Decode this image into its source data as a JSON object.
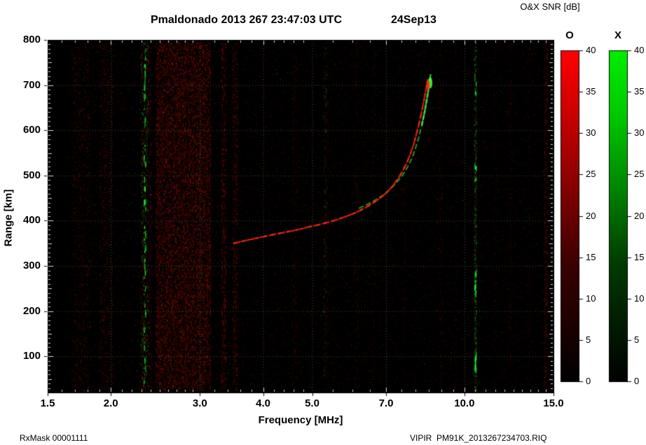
{
  "header": {
    "title": "Pmaldonado 2013 267 23:47:03 UTC",
    "date": "24Sep13",
    "snr_label": "O&X SNR [dB]"
  },
  "axes": {
    "xlabel": "Frequency [MHz]",
    "ylabel": "Range [km]"
  },
  "colorbars": {
    "o": {
      "label": "O",
      "color": "#ff0000",
      "ticks": [
        "0",
        "5",
        "10",
        "15",
        "20",
        "25",
        "30",
        "35",
        "40"
      ]
    },
    "x": {
      "label": "X",
      "color": "#00ff00",
      "ticks": [
        "0",
        "5",
        "10",
        "15",
        "20",
        "25",
        "30",
        "35",
        "40"
      ]
    }
  },
  "footer": {
    "left": "RxMask 00001111",
    "right": "VIPIR  PM91K_2013267234703.RIQ"
  },
  "chart_data": {
    "type": "heatmap",
    "title": "Pmaldonado 2013 267 23:47:03 UTC  24Sep13",
    "xlabel": "Frequency [MHz]",
    "ylabel": "Range [km]",
    "x_scale": "log",
    "xlim": [
      1.5,
      15.0
    ],
    "ylim": [
      20,
      800
    ],
    "x_ticks": [
      1.5,
      2.0,
      3.0,
      4.0,
      5.0,
      7.0,
      10.0,
      15.0
    ],
    "x_tick_labels": [
      "1.5",
      "2.0",
      "3.0",
      "4.0",
      "5.0",
      "7.0",
      "10.0",
      "15.0"
    ],
    "y_ticks": [
      100,
      200,
      300,
      400,
      500,
      600,
      700,
      800
    ],
    "grid": true,
    "background_color": "#000000",
    "colorbar": {
      "label": "O&X SNR [dB]",
      "min": 0,
      "max": 40,
      "tick_step": 5,
      "o_color": "red",
      "x_color": "green"
    },
    "o_trace_points_mhz_km": [
      [
        3.5,
        350
      ],
      [
        3.62,
        354
      ],
      [
        3.76,
        358
      ],
      [
        3.9,
        362
      ],
      [
        4.05,
        366
      ],
      [
        4.22,
        370
      ],
      [
        4.4,
        374
      ],
      [
        4.58,
        378
      ],
      [
        4.76,
        382
      ],
      [
        4.95,
        387
      ],
      [
        5.15,
        391
      ],
      [
        5.35,
        396
      ],
      [
        5.55,
        401
      ],
      [
        5.75,
        407
      ],
      [
        5.95,
        413
      ],
      [
        6.15,
        420
      ],
      [
        6.35,
        428
      ],
      [
        6.55,
        437
      ],
      [
        6.75,
        447
      ],
      [
        6.95,
        458
      ],
      [
        7.1,
        468
      ],
      [
        7.25,
        480
      ],
      [
        7.4,
        494
      ],
      [
        7.55,
        510
      ],
      [
        7.7,
        529
      ],
      [
        7.82,
        548
      ],
      [
        7.93,
        568
      ],
      [
        8.03,
        590
      ],
      [
        8.13,
        614
      ],
      [
        8.23,
        640
      ],
      [
        8.32,
        667
      ],
      [
        8.4,
        692
      ],
      [
        8.46,
        712
      ]
    ],
    "x_trace_points_mhz_km": [
      [
        6.2,
        428
      ],
      [
        6.45,
        437
      ],
      [
        6.7,
        447
      ],
      [
        6.95,
        459
      ],
      [
        7.15,
        471
      ],
      [
        7.35,
        485
      ],
      [
        7.55,
        501
      ],
      [
        7.72,
        519
      ],
      [
        7.88,
        539
      ],
      [
        8.0,
        560
      ],
      [
        8.12,
        584
      ],
      [
        8.24,
        612
      ],
      [
        8.35,
        643
      ],
      [
        8.45,
        676
      ],
      [
        8.53,
        705
      ],
      [
        8.57,
        722
      ]
    ],
    "rfi_bands": [
      {
        "f0": 1.68,
        "f1": 1.82,
        "color": "red",
        "count": 900,
        "alpha": 0.3
      },
      {
        "f0": 1.9,
        "f1": 2.02,
        "color": "red",
        "count": 900,
        "alpha": 0.3
      },
      {
        "f0": 2.28,
        "f1": 2.4,
        "color": "red",
        "count": 900,
        "alpha": 0.38
      },
      {
        "f0": 2.29,
        "f1": 2.37,
        "color": "green",
        "count": 500,
        "alpha": 0.4
      },
      {
        "f0": 2.45,
        "f1": 3.15,
        "color": "red",
        "count": 15000,
        "alpha": 0.32
      },
      {
        "f0": 2.5,
        "f1": 3.1,
        "color": "green",
        "count": 700,
        "alpha": 0.18
      },
      {
        "f0": 3.3,
        "f1": 3.38,
        "color": "red",
        "count": 800,
        "alpha": 0.38
      },
      {
        "f0": 3.48,
        "f1": 3.56,
        "color": "red",
        "count": 700,
        "alpha": 0.34
      },
      {
        "f0": 4.55,
        "f1": 4.66,
        "color": "red",
        "count": 350,
        "alpha": 0.22
      },
      {
        "f0": 5.25,
        "f1": 5.38,
        "color": "red",
        "count": 350,
        "alpha": 0.22
      },
      {
        "f0": 5.26,
        "f1": 5.34,
        "color": "green",
        "count": 160,
        "alpha": 0.28
      },
      {
        "f0": 6.05,
        "f1": 6.18,
        "color": "red",
        "count": 280,
        "alpha": 0.2
      },
      {
        "f0": 6.55,
        "f1": 6.65,
        "color": "red",
        "count": 220,
        "alpha": 0.18
      },
      {
        "f0": 7.55,
        "f1": 7.65,
        "color": "red",
        "count": 200,
        "alpha": 0.16
      },
      {
        "f0": 8.9,
        "f1": 9.05,
        "color": "red",
        "count": 250,
        "alpha": 0.2
      },
      {
        "f0": 9.55,
        "f1": 9.65,
        "color": "red",
        "count": 200,
        "alpha": 0.16
      },
      {
        "f0": 10.42,
        "f1": 10.58,
        "color": "red",
        "count": 350,
        "alpha": 0.24
      },
      {
        "f0": 10.44,
        "f1": 10.56,
        "color": "green",
        "count": 450,
        "alpha": 0.45
      },
      {
        "f0": 11.4,
        "f1": 11.5,
        "color": "red",
        "count": 180,
        "alpha": 0.15
      },
      {
        "f0": 12.2,
        "f1": 12.4,
        "color": "red",
        "count": 260,
        "alpha": 0.18
      },
      {
        "f0": 13.3,
        "f1": 13.5,
        "color": "red",
        "count": 220,
        "alpha": 0.16
      },
      {
        "f0": 14.35,
        "f1": 14.6,
        "color": "red",
        "count": 650,
        "alpha": 0.3
      }
    ],
    "bright_green_lines": [
      {
        "freq": 2.33,
        "segments": 60
      },
      {
        "freq": 10.5,
        "segments": 40,
        "clusters_km": [
          [
            670,
            745
          ],
          [
            490,
            530
          ],
          [
            240,
            300
          ],
          [
            75,
            115
          ]
        ]
      }
    ],
    "noise": {
      "base_count": 26000,
      "green_fraction": 0.13,
      "start_mhz": 1.63,
      "dense_band_mhz": [
        2.45,
        3.15
      ]
    }
  }
}
